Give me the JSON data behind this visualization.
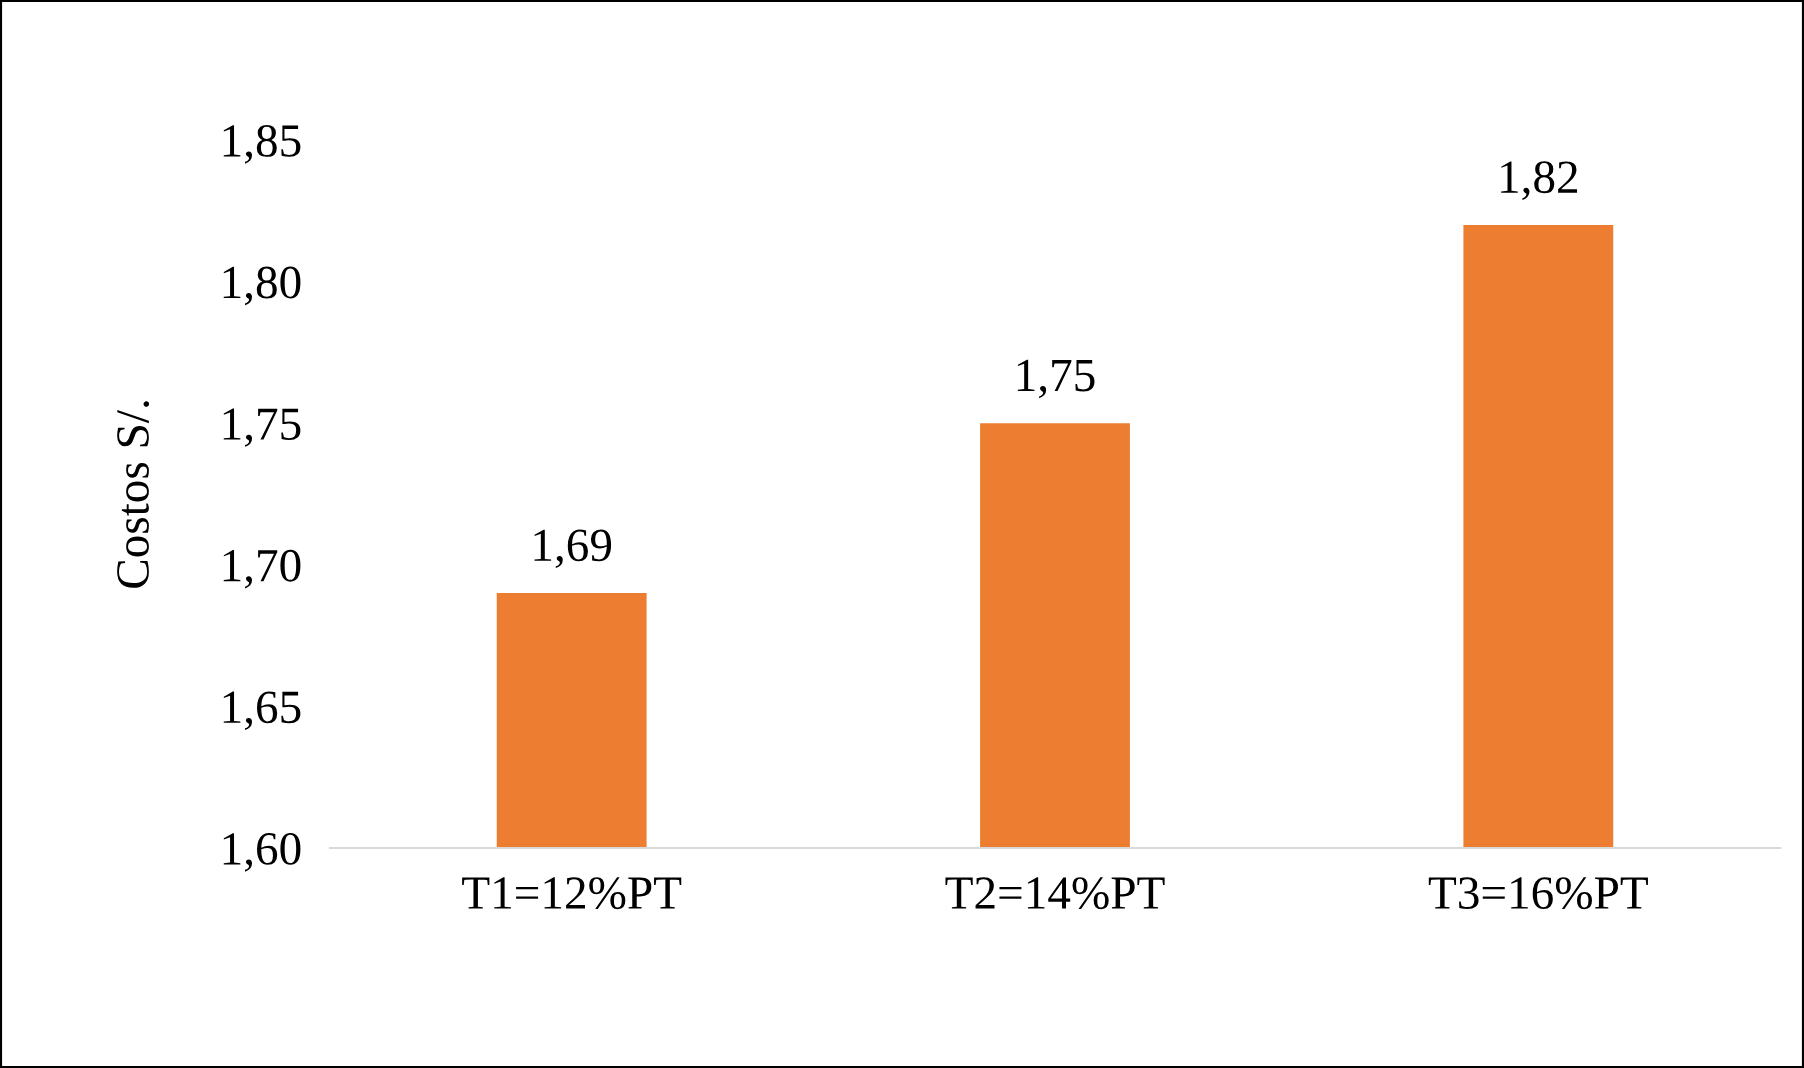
{
  "chart_data": {
    "type": "bar",
    "ylabel": "Costos S/.",
    "categories": [
      "T1=12%PT",
      "T2=14%PT",
      "T3=16%PT"
    ],
    "values": [
      1.69,
      1.75,
      1.82
    ],
    "color": "#ed7d31",
    "value_labels": [
      "1,69",
      "1,75",
      "1,82"
    ],
    "ylim": [
      1.6,
      1.85
    ],
    "yticks": [
      {
        "value": 1.6,
        "label": "1,60"
      },
      {
        "value": 1.65,
        "label": "1,65"
      },
      {
        "value": 1.7,
        "label": "1,70"
      },
      {
        "value": 1.75,
        "label": "1,75"
      },
      {
        "value": 1.8,
        "label": "1,80"
      },
      {
        "value": 1.85,
        "label": "1,85"
      }
    ],
    "grid": false,
    "legend": false
  }
}
